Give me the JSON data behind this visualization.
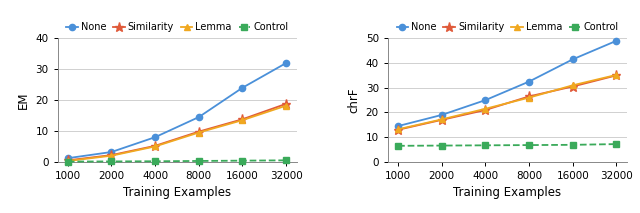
{
  "x": [
    1000,
    2000,
    4000,
    8000,
    16000,
    32000
  ],
  "left": {
    "ylabel": "EM",
    "xlabel": "Training Examples",
    "ylim": [
      0,
      40
    ],
    "yticks": [
      0,
      10,
      20,
      30,
      40
    ],
    "none": [
      1.2,
      3.2,
      8.0,
      14.5,
      24.0,
      32.0
    ],
    "similarity": [
      0.5,
      2.2,
      5.2,
      9.8,
      13.8,
      18.8
    ],
    "lemma": [
      0.3,
      2.0,
      5.0,
      9.5,
      13.5,
      18.2
    ],
    "control": [
      0.1,
      0.15,
      0.2,
      0.3,
      0.4,
      0.5
    ]
  },
  "right": {
    "ylabel": "chrF",
    "xlabel": "Training Examples",
    "ylim": [
      0,
      50
    ],
    "yticks": [
      0,
      10,
      20,
      30,
      40,
      50
    ],
    "none": [
      14.5,
      19.0,
      25.0,
      32.5,
      41.5,
      49.0
    ],
    "similarity": [
      13.0,
      17.0,
      21.0,
      26.5,
      30.5,
      35.0
    ],
    "lemma": [
      13.2,
      17.2,
      21.5,
      26.0,
      31.0,
      35.2
    ],
    "control": [
      6.5,
      6.6,
      6.7,
      6.8,
      6.9,
      7.2
    ]
  },
  "colors": {
    "none": "#4a90d9",
    "similarity": "#e05a3a",
    "lemma": "#f0a820",
    "control": "#3aaa5a"
  },
  "markers": {
    "none": "o",
    "similarity": "*",
    "lemma": "^",
    "control": "s"
  },
  "legend_labels": [
    "None",
    "Similarity",
    "Lemma",
    "Control"
  ],
  "legend_keys": [
    "none",
    "similarity",
    "lemma",
    "control"
  ]
}
